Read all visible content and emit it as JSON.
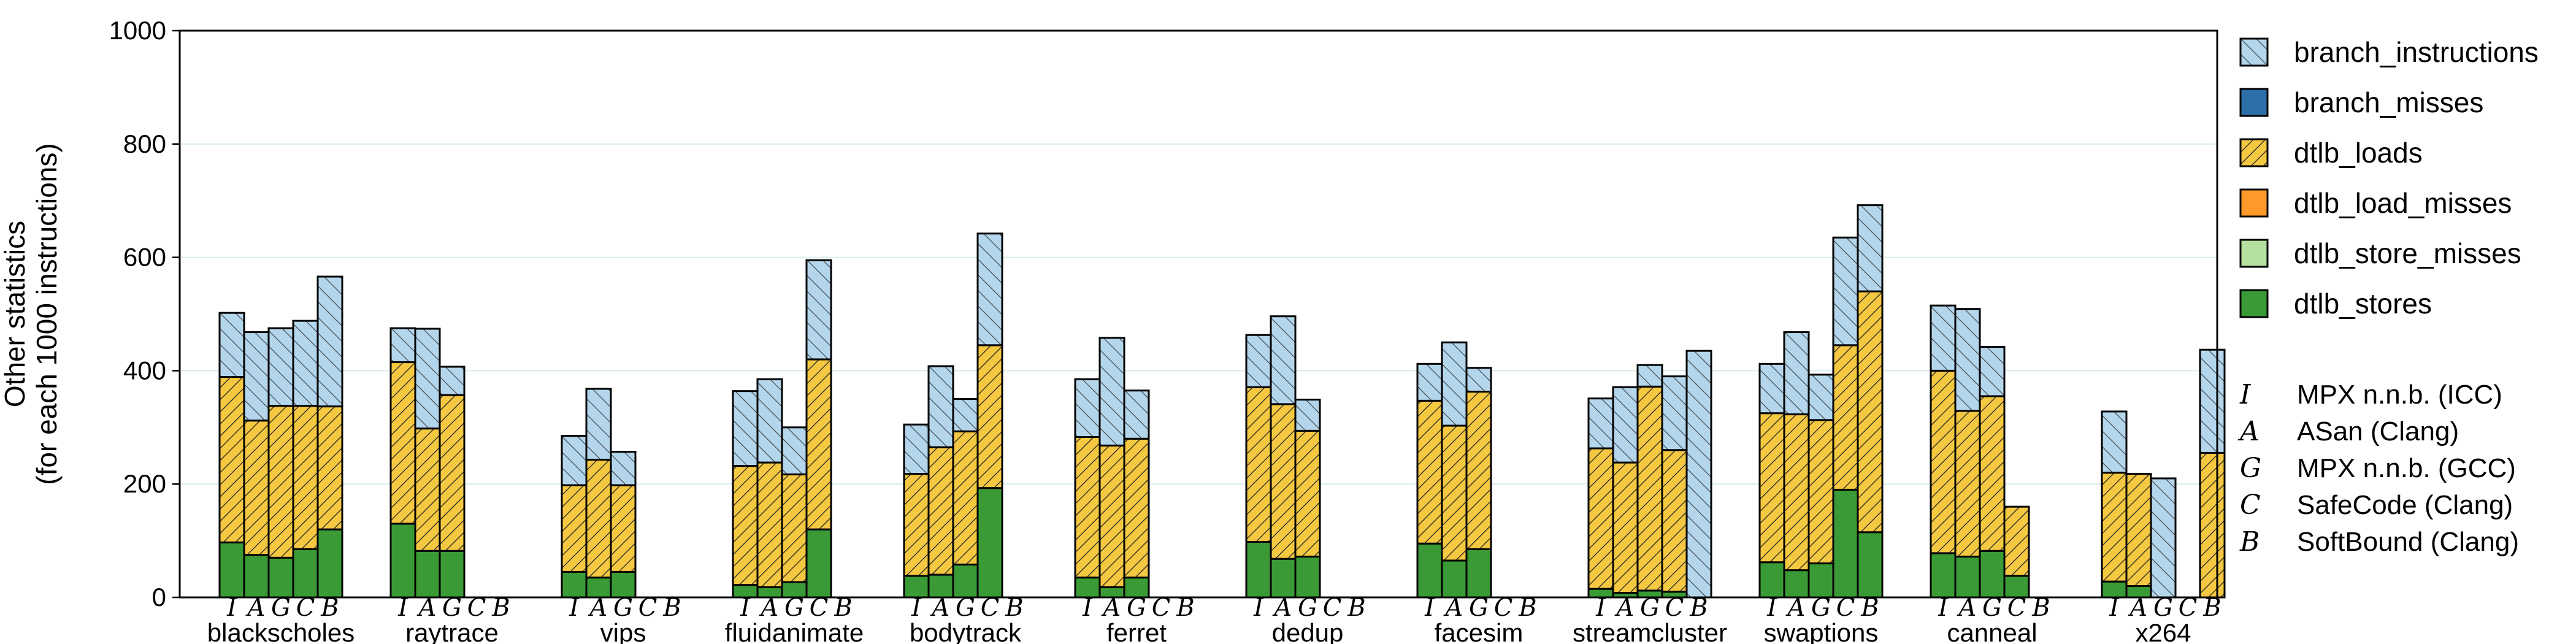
{
  "chart_data": {
    "type": "bar",
    "stacked": true,
    "ylabel_lines": [
      "Other statistics",
      "(for each 1000 instructions)"
    ],
    "ylim": [
      0,
      1000
    ],
    "yticks": [
      0,
      200,
      400,
      600,
      800,
      1000
    ],
    "grid": true,
    "categories": [
      "blackscholes",
      "raytrace",
      "vips",
      "fluidanimate",
      "bodytrack",
      "ferret",
      "dedup",
      "facesim",
      "streamcluster",
      "swaptions",
      "canneal",
      "x264"
    ],
    "variants": [
      "I",
      "A",
      "G",
      "C",
      "B"
    ],
    "legend_position": "right",
    "series": [
      {
        "name": "dtlb_stores",
        "color": "#3a9a35",
        "hatch": "none",
        "values": [
          [
            97,
            75,
            70,
            85,
            120
          ],
          [
            130,
            82,
            82,
            0,
            0
          ],
          [
            45,
            35,
            45,
            0,
            0
          ],
          [
            22,
            18,
            27,
            120,
            0
          ],
          [
            38,
            40,
            58,
            193,
            0
          ],
          [
            35,
            18,
            35,
            0,
            0
          ],
          [
            98,
            68,
            72,
            0,
            0
          ],
          [
            95,
            65,
            85,
            0,
            0
          ],
          [
            15,
            8,
            12,
            10,
            0
          ],
          [
            62,
            48,
            60,
            190,
            115
          ],
          [
            78,
            72,
            82,
            38,
            0
          ],
          [
            28,
            20,
            0,
            0,
            0
          ]
        ]
      },
      {
        "name": "dtlb_store_misses",
        "color": "#b5e0a0",
        "hatch": "none",
        "values": [
          [
            0,
            0,
            0,
            0,
            0
          ],
          [
            0,
            0,
            0,
            0,
            0
          ],
          [
            0,
            0,
            0,
            0,
            0
          ],
          [
            0,
            0,
            0,
            0,
            0
          ],
          [
            0,
            0,
            0,
            0,
            0
          ],
          [
            0,
            0,
            0,
            0,
            0
          ],
          [
            0,
            0,
            0,
            0,
            0
          ],
          [
            0,
            0,
            0,
            0,
            0
          ],
          [
            0,
            0,
            0,
            0,
            0
          ],
          [
            0,
            0,
            0,
            0,
            0
          ],
          [
            0,
            0,
            0,
            0,
            0
          ],
          [
            0,
            0,
            0,
            0,
            0
          ]
        ]
      },
      {
        "name": "dtlb_load_misses",
        "color": "#ff9a2a",
        "hatch": "none",
        "values": [
          [
            0,
            0,
            0,
            0,
            0
          ],
          [
            0,
            0,
            0,
            0,
            0
          ],
          [
            0,
            0,
            0,
            0,
            0
          ],
          [
            0,
            0,
            0,
            0,
            0
          ],
          [
            0,
            0,
            0,
            0,
            0
          ],
          [
            0,
            0,
            0,
            0,
            0
          ],
          [
            0,
            0,
            0,
            0,
            0
          ],
          [
            0,
            0,
            0,
            0,
            0
          ],
          [
            0,
            0,
            0,
            0,
            0
          ],
          [
            0,
            0,
            0,
            0,
            0
          ],
          [
            0,
            0,
            0,
            0,
            0
          ],
          [
            0,
            0,
            0,
            0,
            0
          ]
        ]
      },
      {
        "name": "dtlb_loads",
        "color": "#f5c842",
        "hatch": "dense",
        "values": [
          [
            292,
            237,
            268,
            253,
            217
          ],
          [
            285,
            216,
            275,
            0,
            0
          ],
          [
            153,
            208,
            153,
            0,
            0
          ],
          [
            210,
            220,
            190,
            300,
            0
          ],
          [
            180,
            225,
            235,
            252,
            0
          ],
          [
            248,
            250,
            245,
            0,
            0
          ],
          [
            273,
            273,
            222,
            0,
            0
          ],
          [
            252,
            238,
            278,
            0,
            0
          ],
          [
            248,
            230,
            360,
            250,
            0
          ],
          [
            263,
            275,
            253,
            255,
            425
          ],
          [
            322,
            257,
            273,
            122,
            0
          ],
          [
            192,
            198,
            0,
            0,
            255
          ]
        ]
      },
      {
        "name": "branch_misses",
        "color": "#2d6fa8",
        "hatch": "none",
        "values": [
          [
            0,
            0,
            0,
            0,
            0
          ],
          [
            0,
            0,
            0,
            0,
            0
          ],
          [
            0,
            0,
            0,
            0,
            0
          ],
          [
            0,
            0,
            0,
            0,
            0
          ],
          [
            0,
            0,
            0,
            0,
            0
          ],
          [
            0,
            0,
            0,
            0,
            0
          ],
          [
            0,
            0,
            0,
            0,
            0
          ],
          [
            0,
            0,
            0,
            0,
            0
          ],
          [
            0,
            0,
            0,
            0,
            0
          ],
          [
            0,
            0,
            0,
            0,
            0
          ],
          [
            0,
            0,
            0,
            0,
            0
          ],
          [
            0,
            0,
            0,
            0,
            0
          ]
        ]
      },
      {
        "name": "branch_instructions",
        "color": "#b3d6ec",
        "hatch": "sparse",
        "values": [
          [
            113,
            156,
            137,
            150,
            229
          ],
          [
            60,
            176,
            50,
            0,
            0
          ],
          [
            87,
            125,
            59,
            0,
            0
          ],
          [
            132,
            147,
            83,
            175,
            0
          ],
          [
            87,
            143,
            57,
            197,
            0
          ],
          [
            102,
            190,
            85,
            0,
            0
          ],
          [
            92,
            155,
            55,
            0,
            0
          ],
          [
            65,
            147,
            42,
            0,
            0
          ],
          [
            88,
            133,
            38,
            130,
            435
          ],
          [
            87,
            145,
            80,
            190,
            152
          ],
          [
            115,
            180,
            87,
            0,
            0
          ],
          [
            108,
            0,
            0,
            0,
            182
          ]
        ]
      }
    ],
    "extra_tops": [
      [
        0,
        0,
        0,
        0,
        0
      ],
      [
        0,
        0,
        0,
        0,
        0
      ],
      [
        0,
        0,
        0,
        0,
        0
      ],
      [
        0,
        0,
        0,
        0,
        0
      ],
      [
        0,
        0,
        0,
        0,
        0
      ],
      [
        0,
        0,
        0,
        0,
        0
      ],
      [
        0,
        0,
        0,
        0,
        0
      ],
      [
        0,
        0,
        0,
        0,
        0
      ],
      [
        0,
        0,
        0,
        0,
        0
      ],
      [
        0,
        0,
        0,
        0,
        0
      ],
      [
        0,
        0,
        0,
        0,
        0
      ],
      [
        0,
        0,
        210,
        0,
        0
      ]
    ],
    "variant_legend": [
      {
        "symbol": "I",
        "label": "MPX n.n.b. (ICC)"
      },
      {
        "symbol": "A",
        "label": "ASan (Clang)"
      },
      {
        "symbol": "G",
        "label": "MPX n.n.b. (GCC)"
      },
      {
        "symbol": "C",
        "label": "SafeCode (Clang)"
      },
      {
        "symbol": "B",
        "label": "SoftBound (Clang)"
      }
    ]
  }
}
